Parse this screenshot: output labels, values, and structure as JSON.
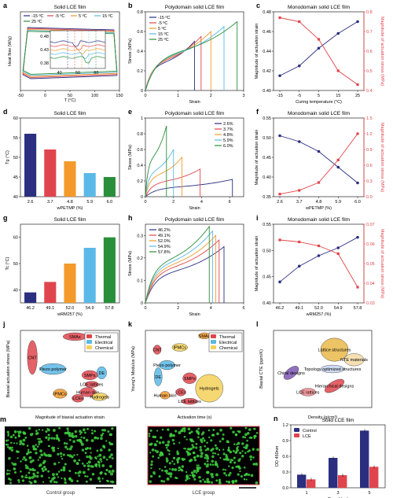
{
  "panels": {
    "a": {
      "letter": "a",
      "title": "Solid LCE film",
      "xlabel": "T (°C)",
      "ylabel": "Heat flow (W/g)"
    },
    "b": {
      "letter": "b",
      "title": "Polydomain solid LCE film",
      "xlabel": "Strain",
      "ylabel": "Stress (MPa)"
    },
    "c": {
      "letter": "c",
      "title": "Monodomain solid LCE film",
      "xlabel": "Curing temperature (°C)",
      "ylabel": "Magnitude of actuation strain",
      "y2label": "Magnitude of actuation stress (MPa)"
    },
    "d": {
      "letter": "d",
      "title": "Solid LCE film",
      "xlabel": "wPETMP (%)",
      "ylabel": "Tg (°C)"
    },
    "e": {
      "letter": "e",
      "title": "Polydomain solid LCE film",
      "xlabel": "Strain",
      "ylabel": "Stress (MPa)"
    },
    "f": {
      "letter": "f",
      "title": "Monodomain solid LCE film",
      "xlabel": "wPETMP (%)",
      "ylabel": "Magnitude of actuation strain",
      "y2label": "Magnitude of actuation stress (MPa)"
    },
    "g": {
      "letter": "g",
      "title": "Solid LCE film",
      "xlabel": "wRM257 (%)",
      "ylabel": "Tc (°C)"
    },
    "h": {
      "letter": "h",
      "title": "Polydomain solid LCE film",
      "xlabel": "Strain",
      "ylabel": "Stress (MPa)"
    },
    "i": {
      "letter": "i",
      "title": "Monodomain solid LCE film",
      "xlabel": "wRM257 (%)",
      "ylabel": "Magnitude of actuation strain",
      "y2label": "Magnitude of actuation stress (MPa)"
    },
    "j": {
      "letter": "j",
      "xlabel": "Magnitude of biaxial actuation strain",
      "ylabel": "Biaxial actuation stress (MPa)"
    },
    "k": {
      "letter": "k",
      "xlabel": "Activation time (s)",
      "ylabel": "Young's Modulus (MPa)"
    },
    "l": {
      "letter": "l",
      "xlabel": "Density (g/cm³)",
      "ylabel": "Biaxial CTE (ppm/K)"
    },
    "m": {
      "letter": "m",
      "left_caption": "Control group",
      "right_caption": "LCE group"
    },
    "n": {
      "letter": "n",
      "title": "Solid LCE film",
      "xlabel": "Time (day)",
      "ylabel": "OD 450nm"
    }
  },
  "colors": {
    "navy": "#2b2f80",
    "red": "#e0454d",
    "orange": "#f39a2b",
    "yellow": "#f5d15a",
    "cyan": "#5ab9e6",
    "green": "#2a8f3b",
    "purple": "#7d56b3",
    "cell": "#3fd23f"
  },
  "chart_data": [
    {
      "panel": "a",
      "type": "line",
      "xlim": [
        -50,
        150
      ],
      "ylim": [
        0.36,
        0.5
      ],
      "series": [
        {
          "name": "-15 ºC",
          "color": "#2b2f80"
        },
        {
          "name": "-5 ºC",
          "color": "#e0454d"
        },
        {
          "name": "5 ºC",
          "color": "#f39a2b"
        },
        {
          "name": "15 ºC",
          "color": "#5ab9e6"
        },
        {
          "name": "25 ºC",
          "color": "#2a8f3b"
        }
      ],
      "xticks": [
        -50,
        0,
        50,
        100,
        150
      ],
      "yticks": [
        0.38,
        0.43,
        0.48
      ],
      "inset_xticks": [
        40,
        50,
        60
      ]
    },
    {
      "panel": "b",
      "type": "line",
      "xlim": [
        0,
        3
      ],
      "ylim": [
        0,
        0.8
      ],
      "series": [
        {
          "name": "-15 ºC",
          "color": "#2b2f80",
          "break_strain": 1.5,
          "break_stress": 0.5
        },
        {
          "name": "-5 ºC",
          "color": "#e0454d",
          "break_strain": 1.7,
          "break_stress": 0.55
        },
        {
          "name": "5 ºC",
          "color": "#f39a2b",
          "break_strain": 2.0,
          "break_stress": 0.6
        },
        {
          "name": "15 ºC",
          "color": "#5ab9e6",
          "break_strain": 2.4,
          "break_stress": 0.65
        },
        {
          "name": "25 ºC",
          "color": "#2a8f3b",
          "break_strain": 2.8,
          "break_stress": 0.7
        }
      ],
      "xticks": [
        0,
        1,
        2,
        3
      ],
      "yticks": [
        0,
        0.2,
        0.4,
        0.6,
        0.8
      ]
    },
    {
      "panel": "c",
      "type": "line",
      "x": [
        -15,
        -5,
        5,
        15,
        25
      ],
      "xticks": [
        -15,
        -5,
        5,
        15,
        25
      ],
      "series": [
        {
          "name": "strain",
          "values": [
            0.415,
            0.425,
            0.443,
            0.458,
            0.47
          ],
          "ylim": [
            0.4,
            0.48
          ],
          "yticks": [
            0.4,
            0.42,
            0.44,
            0.46,
            0.48
          ]
        },
        {
          "name": "stress",
          "values": [
            0.77,
            0.75,
            0.66,
            0.5,
            0.43
          ],
          "ylim": [
            0.4,
            0.8
          ],
          "yticks": [
            0.4,
            0.5,
            0.6,
            0.7,
            0.8
          ]
        }
      ]
    },
    {
      "panel": "d",
      "type": "bar",
      "categories": [
        "2.6",
        "3.7",
        "4.8",
        "5.9",
        "6.0"
      ],
      "values": [
        56,
        52,
        49,
        46,
        45
      ],
      "ylim": [
        40,
        60
      ],
      "yticks": [
        40,
        45,
        50,
        55,
        60
      ],
      "bar_colors": [
        "#2b2f80",
        "#e0454d",
        "#f39a2b",
        "#5ab9e6",
        "#2a8f3b"
      ]
    },
    {
      "panel": "e",
      "type": "line",
      "xlim": [
        0,
        7
      ],
      "ylim": [
        0,
        1
      ],
      "series": [
        {
          "name": "2.6%",
          "color": "#2b2f80",
          "break_strain": 6.2,
          "break_stress": 0.22
        },
        {
          "name": "3.7%",
          "color": "#e0454d",
          "break_strain": 3.9,
          "break_stress": 0.35
        },
        {
          "name": "4.8%",
          "color": "#f39a2b",
          "break_strain": 2.6,
          "break_stress": 0.5
        },
        {
          "name": "5.9%",
          "color": "#5ab9e6",
          "break_strain": 2.0,
          "break_stress": 0.6
        },
        {
          "name": "6.0%",
          "color": "#2a8f3b",
          "break_strain": 1.5,
          "break_stress": 0.9
        }
      ],
      "xticks": [
        0,
        2,
        4,
        6
      ],
      "yticks": [
        0,
        0.2,
        0.4,
        0.6,
        0.8,
        1.0
      ]
    },
    {
      "panel": "f",
      "type": "line",
      "categories": [
        "2.6",
        "3.7",
        "4.8",
        "5.9",
        "6.0"
      ],
      "series": [
        {
          "name": "strain",
          "values": [
            0.505,
            0.49,
            0.465,
            0.425,
            0.385
          ],
          "ylim": [
            0.35,
            0.55
          ],
          "yticks": [
            0.35,
            0.4,
            0.45,
            0.5,
            0.55
          ]
        },
        {
          "name": "stress",
          "values": [
            0.05,
            0.12,
            0.27,
            0.7,
            1.2
          ],
          "ylim": [
            0,
            1.5
          ],
          "yticks": [
            0.0,
            0.3,
            0.6,
            0.9,
            1.2,
            1.5
          ]
        }
      ]
    },
    {
      "panel": "g",
      "type": "bar",
      "categories": [
        "46.2",
        "49.1",
        "52.0",
        "54.9",
        "57.8"
      ],
      "values": [
        39,
        43,
        50,
        56,
        60
      ],
      "ylim": [
        35,
        65
      ],
      "yticks": [
        40,
        50,
        60
      ],
      "bar_colors": [
        "#2b2f80",
        "#e0454d",
        "#f39a2b",
        "#5ab9e6",
        "#2a8f3b"
      ]
    },
    {
      "panel": "h",
      "type": "line",
      "xlim": [
        0,
        6
      ],
      "ylim": [
        0,
        0.35
      ],
      "series": [
        {
          "name": "46.2%",
          "color": "#2b2f80",
          "break_strain": 4.8,
          "break_stress": 0.25
        },
        {
          "name": "49.1%",
          "color": "#e0454d",
          "break_strain": 4.5,
          "break_stress": 0.28
        },
        {
          "name": "52.0%",
          "color": "#f39a2b",
          "break_strain": 4.3,
          "break_stress": 0.3
        },
        {
          "name": "54.9%",
          "color": "#5ab9e6",
          "break_strain": 4.1,
          "break_stress": 0.32
        },
        {
          "name": "57.8%",
          "color": "#2a8f3b",
          "break_strain": 3.9,
          "break_stress": 0.34
        }
      ],
      "xticks": [
        0,
        2,
        4,
        6
      ],
      "yticks": [
        0,
        0.1,
        0.2,
        0.3
      ]
    },
    {
      "panel": "i",
      "type": "line",
      "categories": [
        "46.2",
        "49.1",
        "52.0",
        "54.9",
        "57.8"
      ],
      "series": [
        {
          "name": "strain",
          "values": [
            0.44,
            0.47,
            0.49,
            0.505,
            0.525
          ],
          "ylim": [
            0.4,
            0.55
          ],
          "yticks": [
            0.4,
            0.45,
            0.5,
            0.55
          ]
        },
        {
          "name": "stress",
          "values": [
            0.062,
            0.061,
            0.059,
            0.055,
            0.038
          ],
          "ylim": [
            0.03,
            0.07
          ],
          "yticks": [
            0.03,
            0.04,
            0.05,
            0.06,
            0.07
          ]
        }
      ]
    },
    {
      "panel": "j",
      "type": "scatter",
      "xlim_log": [
        -3,
        0
      ],
      "ylim_log": [
        -3,
        3
      ],
      "legend": [
        {
          "name": "Thermal",
          "color": "#e0454d"
        },
        {
          "name": "Electrical",
          "color": "#5ab9e6"
        },
        {
          "name": "Chemical",
          "color": "#f5d15a"
        }
      ],
      "regions": [
        {
          "label": "SMAs",
          "type": "Thermal"
        },
        {
          "label": "CNT",
          "type": "Thermal"
        },
        {
          "label": "Piezo polymer",
          "type": "Electrical"
        },
        {
          "label": "DE",
          "type": "Electrical"
        },
        {
          "label": "SMPs",
          "type": "Thermal"
        },
        {
          "label": "LCE lattices",
          "type": "Thermal"
        },
        {
          "label": "IPMCs",
          "type": "Electrical"
        },
        {
          "label": "LCEs",
          "type": "Thermal"
        },
        {
          "label": "Human skin",
          "type": "Thermal"
        },
        {
          "label": "Hydrogels",
          "type": "Chemical"
        }
      ]
    },
    {
      "panel": "k",
      "type": "scatter",
      "xlim_log": [
        -2,
        4
      ],
      "ylim_log": [
        -3,
        6
      ],
      "legend": [
        {
          "name": "Thermal",
          "color": "#e0454d"
        },
        {
          "name": "Electrical",
          "color": "#5ab9e6"
        },
        {
          "name": "Chemical",
          "color": "#f5d15a"
        }
      ],
      "regions": [
        {
          "label": "SMAs",
          "type": "Thermal"
        },
        {
          "label": "CNT",
          "type": "Thermal"
        },
        {
          "label": "IPMCs",
          "type": "Electrical"
        },
        {
          "label": "Piezo polymer",
          "type": "Electrical"
        },
        {
          "label": "DE",
          "type": "Electrical"
        },
        {
          "label": "SMPs",
          "type": "Thermal"
        },
        {
          "label": "Human skin",
          "type": "Thermal"
        },
        {
          "label": "LCEs",
          "type": "Thermal"
        },
        {
          "label": "Hydrogels",
          "type": "Chemical"
        },
        {
          "label": "LCE lattices",
          "type": "Thermal"
        }
      ]
    },
    {
      "panel": "l",
      "type": "scatter",
      "xlim_log": [
        -2,
        2
      ],
      "ylim_log": [
        -1,
        4
      ],
      "regions": [
        {
          "label": "Lattice structures"
        },
        {
          "label": "NTE materials"
        },
        {
          "label": "Chiral designs"
        },
        {
          "label": "Topology optimized structures"
        },
        {
          "label": "Hierarchical designs"
        },
        {
          "label": "LCE lattices"
        }
      ]
    },
    {
      "panel": "n",
      "type": "bar",
      "categories": [
        "1",
        "3",
        "5"
      ],
      "series": [
        {
          "name": "Control",
          "color": "#2b2f80",
          "values": [
            0.25,
            0.57,
            1.09
          ]
        },
        {
          "name": "LCE",
          "color": "#e0454d",
          "values": [
            0.16,
            0.24,
            0.4
          ]
        }
      ],
      "ylim": [
        0,
        1.2
      ],
      "yticks": [
        0.0,
        0.3,
        0.6,
        0.9,
        1.2
      ]
    }
  ]
}
